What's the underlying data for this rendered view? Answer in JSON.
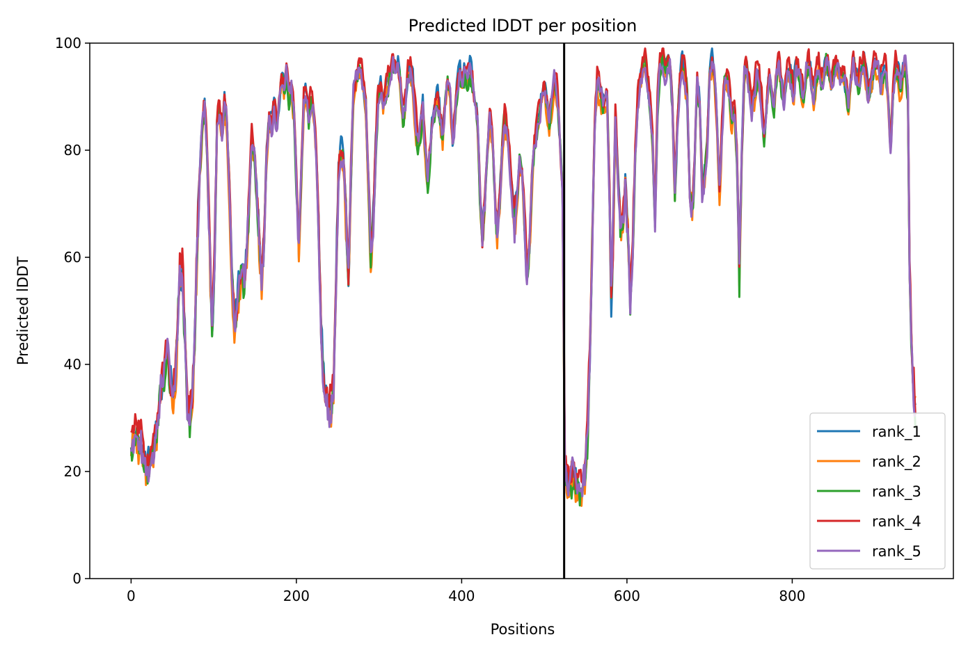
{
  "chart_data": {
    "type": "line",
    "title": "Predicted lDDT per position",
    "xlabel": "Positions",
    "ylabel": "Predicted lDDT",
    "xlim": [
      -50,
      995
    ],
    "ylim": [
      0,
      100
    ],
    "xticks": [
      0,
      200,
      400,
      600,
      800
    ],
    "yticks": [
      0,
      20,
      40,
      60,
      80,
      100
    ],
    "grid": false,
    "legend_position": "lower-right",
    "vline": {
      "x": 524,
      "color": "#000000"
    },
    "base_points": [
      [
        0,
        25
      ],
      [
        3,
        27
      ],
      [
        6,
        28
      ],
      [
        9,
        26
      ],
      [
        12,
        25
      ],
      [
        15,
        22
      ],
      [
        18,
        21
      ],
      [
        22,
        22
      ],
      [
        26,
        24
      ],
      [
        30,
        28
      ],
      [
        35,
        34
      ],
      [
        40,
        38
      ],
      [
        44,
        43
      ],
      [
        47,
        38
      ],
      [
        50,
        34
      ],
      [
        53,
        35
      ],
      [
        56,
        45
      ],
      [
        59,
        56
      ],
      [
        62,
        57
      ],
      [
        65,
        45
      ],
      [
        68,
        32
      ],
      [
        71,
        30
      ],
      [
        74,
        33
      ],
      [
        77,
        45
      ],
      [
        80,
        62
      ],
      [
        83,
        75
      ],
      [
        86,
        83
      ],
      [
        89,
        88
      ],
      [
        92,
        80
      ],
      [
        95,
        62
      ],
      [
        98,
        46
      ],
      [
        101,
        60
      ],
      [
        104,
        85
      ],
      [
        107,
        88
      ],
      [
        110,
        83
      ],
      [
        113,
        89
      ],
      [
        116,
        85
      ],
      [
        119,
        72
      ],
      [
        122,
        56
      ],
      [
        125,
        47
      ],
      [
        128,
        50
      ],
      [
        131,
        55
      ],
      [
        134,
        58
      ],
      [
        137,
        55
      ],
      [
        140,
        60
      ],
      [
        143,
        72
      ],
      [
        146,
        82
      ],
      [
        149,
        80
      ],
      [
        152,
        72
      ],
      [
        155,
        62
      ],
      [
        158,
        55
      ],
      [
        161,
        64
      ],
      [
        164,
        78
      ],
      [
        167,
        86
      ],
      [
        170,
        84
      ],
      [
        173,
        88
      ],
      [
        176,
        85
      ],
      [
        179,
        89
      ],
      [
        182,
        93
      ],
      [
        185,
        91
      ],
      [
        188,
        94
      ],
      [
        191,
        89
      ],
      [
        194,
        92
      ],
      [
        197,
        86
      ],
      [
        200,
        74
      ],
      [
        203,
        63
      ],
      [
        206,
        76
      ],
      [
        209,
        89
      ],
      [
        212,
        91
      ],
      [
        215,
        86
      ],
      [
        218,
        89
      ],
      [
        221,
        87
      ],
      [
        224,
        80
      ],
      [
        227,
        65
      ],
      [
        230,
        45
      ],
      [
        233,
        36
      ],
      [
        236,
        33
      ],
      [
        239,
        31
      ],
      [
        242,
        32
      ],
      [
        245,
        36
      ],
      [
        248,
        55
      ],
      [
        251,
        76
      ],
      [
        254,
        80
      ],
      [
        257,
        78
      ],
      [
        260,
        68
      ],
      [
        263,
        55
      ],
      [
        266,
        75
      ],
      [
        269,
        90
      ],
      [
        272,
        93
      ],
      [
        275,
        95
      ],
      [
        278,
        94
      ],
      [
        281,
        92
      ],
      [
        284,
        88
      ],
      [
        287,
        75
      ],
      [
        290,
        60
      ],
      [
        293,
        66
      ],
      [
        296,
        80
      ],
      [
        299,
        90
      ],
      [
        302,
        92
      ],
      [
        305,
        88
      ],
      [
        308,
        91
      ],
      [
        311,
        93
      ],
      [
        314,
        95
      ],
      [
        317,
        96
      ],
      [
        320,
        93
      ],
      [
        323,
        95
      ],
      [
        326,
        92
      ],
      [
        329,
        86
      ],
      [
        332,
        89
      ],
      [
        335,
        94
      ],
      [
        338,
        95
      ],
      [
        341,
        92
      ],
      [
        344,
        86
      ],
      [
        347,
        81
      ],
      [
        350,
        84
      ],
      [
        353,
        88
      ],
      [
        356,
        80
      ],
      [
        359,
        74
      ],
      [
        362,
        80
      ],
      [
        365,
        86
      ],
      [
        368,
        88
      ],
      [
        371,
        90
      ],
      [
        374,
        86
      ],
      [
        377,
        82
      ],
      [
        380,
        88
      ],
      [
        383,
        92
      ],
      [
        386,
        90
      ],
      [
        389,
        81
      ],
      [
        392,
        86
      ],
      [
        395,
        92
      ],
      [
        398,
        94
      ],
      [
        401,
        92
      ],
      [
        404,
        95
      ],
      [
        407,
        93
      ],
      [
        410,
        95
      ],
      [
        413,
        92
      ],
      [
        416,
        88
      ],
      [
        419,
        86
      ],
      [
        422,
        72
      ],
      [
        425,
        63
      ],
      [
        428,
        70
      ],
      [
        431,
        80
      ],
      [
        434,
        86
      ],
      [
        437,
        82
      ],
      [
        440,
        72
      ],
      [
        443,
        63
      ],
      [
        446,
        70
      ],
      [
        449,
        80
      ],
      [
        452,
        86
      ],
      [
        455,
        83
      ],
      [
        458,
        78
      ],
      [
        461,
        72
      ],
      [
        464,
        66
      ],
      [
        467,
        70
      ],
      [
        470,
        78
      ],
      [
        473,
        75
      ],
      [
        476,
        65
      ],
      [
        479,
        56
      ],
      [
        482,
        62
      ],
      [
        485,
        74
      ],
      [
        488,
        80
      ],
      [
        491,
        83
      ],
      [
        494,
        86
      ],
      [
        497,
        90
      ],
      [
        500,
        92
      ],
      [
        503,
        88
      ],
      [
        506,
        84
      ],
      [
        509,
        88
      ],
      [
        512,
        92
      ],
      [
        515,
        90
      ],
      [
        518,
        84
      ],
      [
        522,
        72
      ],
      [
        525,
        19
      ],
      [
        528,
        17
      ],
      [
        531,
        18
      ],
      [
        534,
        19
      ],
      [
        537,
        18
      ],
      [
        540,
        17
      ],
      [
        543,
        16
      ],
      [
        546,
        17
      ],
      [
        549,
        19
      ],
      [
        552,
        26
      ],
      [
        555,
        40
      ],
      [
        558,
        62
      ],
      [
        561,
        85
      ],
      [
        564,
        93
      ],
      [
        567,
        91
      ],
      [
        570,
        89
      ],
      [
        573,
        88
      ],
      [
        576,
        90
      ],
      [
        579,
        70
      ],
      [
        581,
        52
      ],
      [
        583,
        62
      ],
      [
        586,
        86
      ],
      [
        589,
        75
      ],
      [
        592,
        66
      ],
      [
        595,
        65
      ],
      [
        598,
        74
      ],
      [
        601,
        64
      ],
      [
        604,
        52
      ],
      [
        607,
        62
      ],
      [
        610,
        78
      ],
      [
        613,
        88
      ],
      [
        616,
        92
      ],
      [
        619,
        94
      ],
      [
        622,
        96
      ],
      [
        625,
        93
      ],
      [
        628,
        88
      ],
      [
        631,
        82
      ],
      [
        634,
        67
      ],
      [
        637,
        88
      ],
      [
        640,
        96
      ],
      [
        643,
        97
      ],
      [
        646,
        95
      ],
      [
        649,
        97
      ],
      [
        652,
        96
      ],
      [
        655,
        88
      ],
      [
        658,
        72
      ],
      [
        661,
        84
      ],
      [
        664,
        92
      ],
      [
        667,
        96
      ],
      [
        670,
        94
      ],
      [
        673,
        90
      ],
      [
        676,
        72
      ],
      [
        679,
        68
      ],
      [
        682,
        78
      ],
      [
        685,
        92
      ],
      [
        688,
        88
      ],
      [
        691,
        72
      ],
      [
        694,
        75
      ],
      [
        697,
        80
      ],
      [
        700,
        93
      ],
      [
        703,
        96
      ],
      [
        706,
        94
      ],
      [
        709,
        85
      ],
      [
        712,
        72
      ],
      [
        715,
        84
      ],
      [
        718,
        92
      ],
      [
        721,
        93
      ],
      [
        724,
        90
      ],
      [
        727,
        85
      ],
      [
        730,
        88
      ],
      [
        733,
        80
      ],
      [
        736,
        56
      ],
      [
        739,
        80
      ],
      [
        742,
        94
      ],
      [
        745,
        95
      ],
      [
        748,
        92
      ],
      [
        751,
        88
      ],
      [
        754,
        90
      ],
      [
        757,
        94
      ],
      [
        760,
        93
      ],
      [
        763,
        88
      ],
      [
        766,
        82
      ],
      [
        769,
        88
      ],
      [
        772,
        94
      ],
      [
        775,
        92
      ],
      [
        778,
        88
      ],
      [
        781,
        94
      ],
      [
        784,
        96
      ],
      [
        787,
        92
      ],
      [
        790,
        88
      ],
      [
        793,
        94
      ],
      [
        796,
        95
      ],
      [
        799,
        93
      ],
      [
        802,
        90
      ],
      [
        805,
        96
      ],
      [
        808,
        94
      ],
      [
        811,
        92
      ],
      [
        814,
        90
      ],
      [
        817,
        95
      ],
      [
        820,
        97
      ],
      [
        823,
        93
      ],
      [
        826,
        90
      ],
      [
        829,
        94
      ],
      [
        832,
        96
      ],
      [
        835,
        93
      ],
      [
        838,
        94
      ],
      [
        841,
        97
      ],
      [
        844,
        95
      ],
      [
        847,
        92
      ],
      [
        850,
        94
      ],
      [
        853,
        96
      ],
      [
        856,
        95
      ],
      [
        859,
        93
      ],
      [
        862,
        94
      ],
      [
        865,
        92
      ],
      [
        868,
        88
      ],
      [
        871,
        93
      ],
      [
        874,
        96
      ],
      [
        877,
        94
      ],
      [
        880,
        92
      ],
      [
        883,
        95
      ],
      [
        886,
        97
      ],
      [
        889,
        94
      ],
      [
        892,
        90
      ],
      [
        895,
        92
      ],
      [
        898,
        94
      ],
      [
        901,
        96
      ],
      [
        904,
        95
      ],
      [
        907,
        92
      ],
      [
        910,
        94
      ],
      [
        913,
        96
      ],
      [
        916,
        90
      ],
      [
        919,
        80
      ],
      [
        922,
        90
      ],
      [
        925,
        95
      ],
      [
        928,
        94
      ],
      [
        931,
        91
      ],
      [
        934,
        95
      ],
      [
        937,
        96
      ],
      [
        940,
        90
      ],
      [
        942,
        58
      ],
      [
        944,
        45
      ],
      [
        946,
        38
      ],
      [
        948,
        33
      ],
      [
        949,
        31
      ]
    ],
    "series": [
      {
        "name": "rank_1",
        "color": "#1f77b4",
        "offset": 0.6,
        "seed": 11
      },
      {
        "name": "rank_2",
        "color": "#ff7f0e",
        "offset": -0.8,
        "seed": 23
      },
      {
        "name": "rank_3",
        "color": "#2ca02c",
        "offset": -0.3,
        "seed": 37
      },
      {
        "name": "rank_4",
        "color": "#d62728",
        "offset": 1.4,
        "seed": 51
      },
      {
        "name": "rank_5",
        "color": "#9467bd",
        "offset": 0.0,
        "seed": 67
      }
    ]
  }
}
